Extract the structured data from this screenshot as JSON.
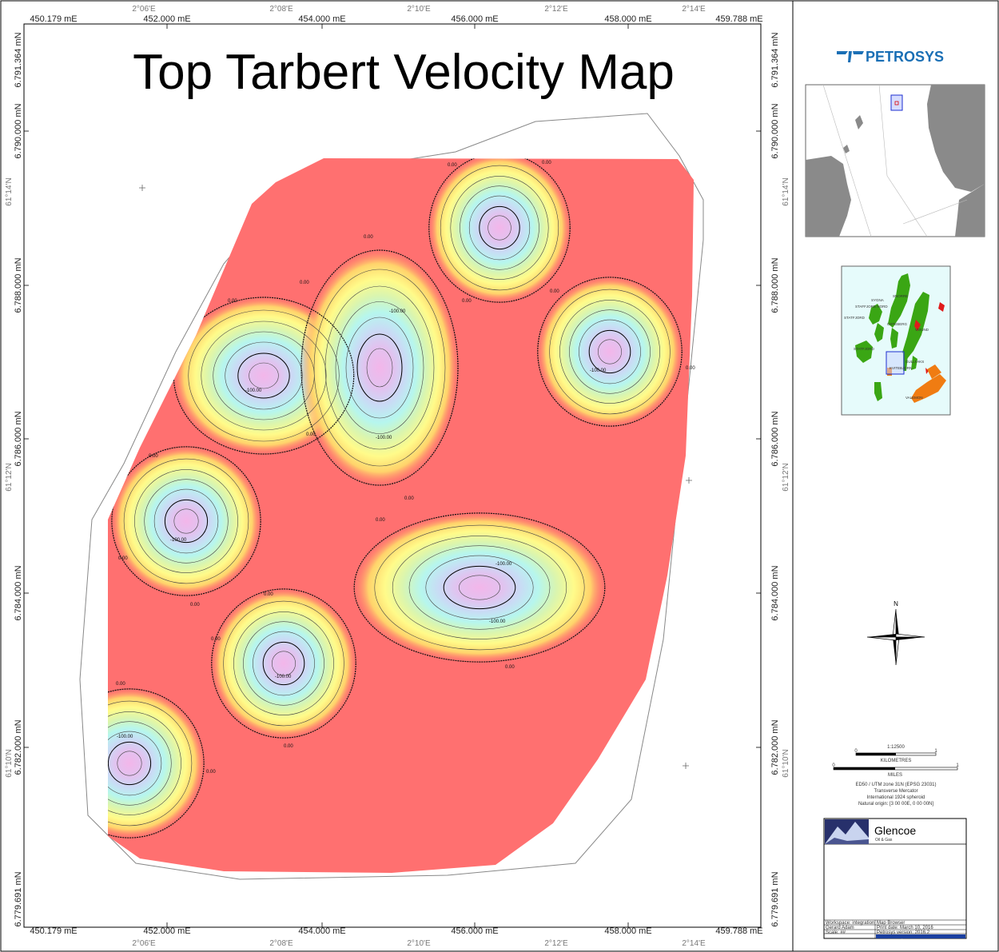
{
  "title": "Top Tarbert Velocity Map",
  "logo": {
    "text": "PETROSYS",
    "color": "#1a6fb5"
  },
  "axes": {
    "easting": [
      "450.179 mE",
      "452.000 mE",
      "454.000 mE",
      "456.000 mE",
      "458.000 mE",
      "459.788 mE"
    ],
    "northing": [
      "6.779.691 mN",
      "6.782.000 mN",
      "6.784.000 mN",
      "6.786.000 mN",
      "6.788.000 mN",
      "6.790.000 mN",
      "6.791.364 mN"
    ],
    "longitude": [
      "2°06'E",
      "2°08'E",
      "2°10'E",
      "2°12'E",
      "2°14'E"
    ],
    "latitude": [
      "61°10'N",
      "61°12'N",
      "61°14'N"
    ]
  },
  "contours": {
    "zero_label": "0.00",
    "neg_label": "-100.00"
  },
  "colors": {
    "background_fill": "#ff7070",
    "ramp": [
      "#ff7070",
      "#ffd36b",
      "#fffb8a",
      "#d9f5b0",
      "#b6f6ee",
      "#c9dbf5",
      "#e2c2ef",
      "#f3b6ea"
    ]
  },
  "fields": [
    "SYGNA",
    "STAFFJORD NORD",
    "SNORRE",
    "STATFJORD",
    "OSTEBERG",
    "VISUND",
    "GULLFAKS",
    "STATFJORD",
    "KVITEBJORN",
    "VALEMON"
  ],
  "north_label": "N",
  "scale": {
    "ratio": "1:12500",
    "km_label": "KILOMETRES",
    "miles_label": "MILES",
    "km_ticks": [
      "0",
      "1"
    ],
    "mi_ticks": [
      "0",
      "1"
    ]
  },
  "projection": [
    "ED50 / UTM zone 31N (EPSG 23031)",
    "Transverse Mercator",
    "International 1924 spheroid",
    "Natural origin: [3 00 00E, 0 00 00N]"
  ],
  "company": {
    "name": "Glencoe",
    "sub": "Oil & Gas"
  },
  "footer_rows": [
    [
      "Workspace: integration",
      "Map Browser"
    ],
    [
      "Gerard Adam",
      "Print date: March 10, 2016"
    ],
    [
      "Scale: ##",
      "Petrosys version: 2016.2"
    ],
    [
      "",
      "www.petrosys.com.au"
    ]
  ]
}
